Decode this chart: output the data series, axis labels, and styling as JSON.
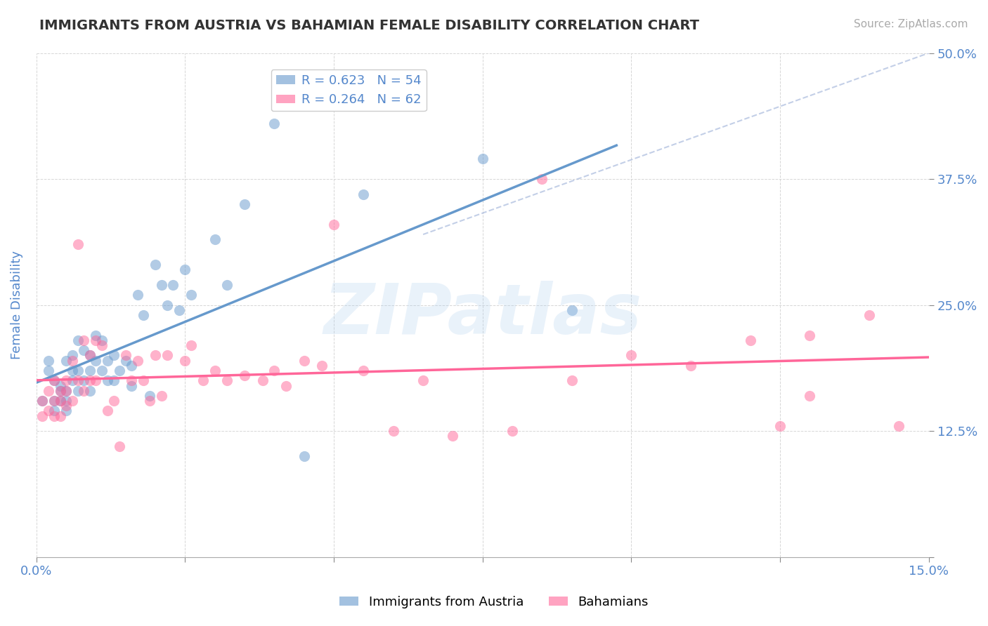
{
  "title": "IMMIGRANTS FROM AUSTRIA VS BAHAMIAN FEMALE DISABILITY CORRELATION CHART",
  "source": "Source: ZipAtlas.com",
  "xlabel": "",
  "ylabel": "Female Disability",
  "xlim": [
    0.0,
    0.15
  ],
  "ylim": [
    0.0,
    0.5
  ],
  "xticks": [
    0.0,
    0.025,
    0.05,
    0.075,
    0.1,
    0.125,
    0.15
  ],
  "xtick_labels": [
    "0.0%",
    "",
    "",
    "",
    "",
    "",
    "15.0%"
  ],
  "yticks": [
    0.0,
    0.125,
    0.25,
    0.375,
    0.5
  ],
  "ytick_labels": [
    "",
    "12.5%",
    "25.0%",
    "37.5%",
    "50.0%"
  ],
  "blue_R": 0.623,
  "blue_N": 54,
  "pink_R": 0.264,
  "pink_N": 62,
  "blue_color": "#6699CC",
  "pink_color": "#FF6699",
  "blue_scatter_x": [
    0.001,
    0.002,
    0.002,
    0.003,
    0.003,
    0.003,
    0.004,
    0.004,
    0.004,
    0.005,
    0.005,
    0.005,
    0.005,
    0.006,
    0.006,
    0.006,
    0.007,
    0.007,
    0.007,
    0.008,
    0.008,
    0.009,
    0.009,
    0.009,
    0.01,
    0.01,
    0.011,
    0.011,
    0.012,
    0.012,
    0.013,
    0.013,
    0.014,
    0.015,
    0.016,
    0.016,
    0.017,
    0.018,
    0.019,
    0.02,
    0.021,
    0.022,
    0.023,
    0.024,
    0.025,
    0.026,
    0.03,
    0.032,
    0.035,
    0.04,
    0.045,
    0.055,
    0.075,
    0.09
  ],
  "blue_scatter_y": [
    0.155,
    0.195,
    0.185,
    0.175,
    0.155,
    0.145,
    0.17,
    0.165,
    0.155,
    0.195,
    0.165,
    0.155,
    0.145,
    0.2,
    0.185,
    0.175,
    0.215,
    0.185,
    0.165,
    0.205,
    0.175,
    0.2,
    0.185,
    0.165,
    0.22,
    0.195,
    0.215,
    0.185,
    0.195,
    0.175,
    0.2,
    0.175,
    0.185,
    0.195,
    0.17,
    0.19,
    0.26,
    0.24,
    0.16,
    0.29,
    0.27,
    0.25,
    0.27,
    0.245,
    0.285,
    0.26,
    0.315,
    0.27,
    0.35,
    0.43,
    0.1,
    0.36,
    0.395,
    0.245
  ],
  "pink_scatter_x": [
    0.001,
    0.001,
    0.002,
    0.002,
    0.003,
    0.003,
    0.003,
    0.004,
    0.004,
    0.004,
    0.005,
    0.005,
    0.005,
    0.006,
    0.006,
    0.007,
    0.007,
    0.008,
    0.008,
    0.009,
    0.009,
    0.01,
    0.01,
    0.011,
    0.012,
    0.013,
    0.014,
    0.015,
    0.016,
    0.017,
    0.018,
    0.019,
    0.02,
    0.021,
    0.022,
    0.025,
    0.026,
    0.028,
    0.03,
    0.032,
    0.035,
    0.038,
    0.04,
    0.042,
    0.045,
    0.048,
    0.05,
    0.055,
    0.06,
    0.065,
    0.07,
    0.08,
    0.09,
    0.1,
    0.11,
    0.12,
    0.13,
    0.13,
    0.14,
    0.145,
    0.125,
    0.085
  ],
  "pink_scatter_y": [
    0.155,
    0.14,
    0.165,
    0.145,
    0.175,
    0.155,
    0.14,
    0.165,
    0.155,
    0.14,
    0.175,
    0.165,
    0.15,
    0.195,
    0.155,
    0.31,
    0.175,
    0.215,
    0.165,
    0.2,
    0.175,
    0.215,
    0.175,
    0.21,
    0.145,
    0.155,
    0.11,
    0.2,
    0.175,
    0.195,
    0.175,
    0.155,
    0.2,
    0.16,
    0.2,
    0.195,
    0.21,
    0.175,
    0.185,
    0.175,
    0.18,
    0.175,
    0.185,
    0.17,
    0.195,
    0.19,
    0.33,
    0.185,
    0.125,
    0.175,
    0.12,
    0.125,
    0.175,
    0.2,
    0.19,
    0.215,
    0.22,
    0.16,
    0.24,
    0.13,
    0.13,
    0.375
  ],
  "watermark": "ZIPatlas",
  "background_color": "#FFFFFF",
  "grid_color": "#CCCCCC",
  "axis_label_color": "#5588CC",
  "title_color": "#333333"
}
